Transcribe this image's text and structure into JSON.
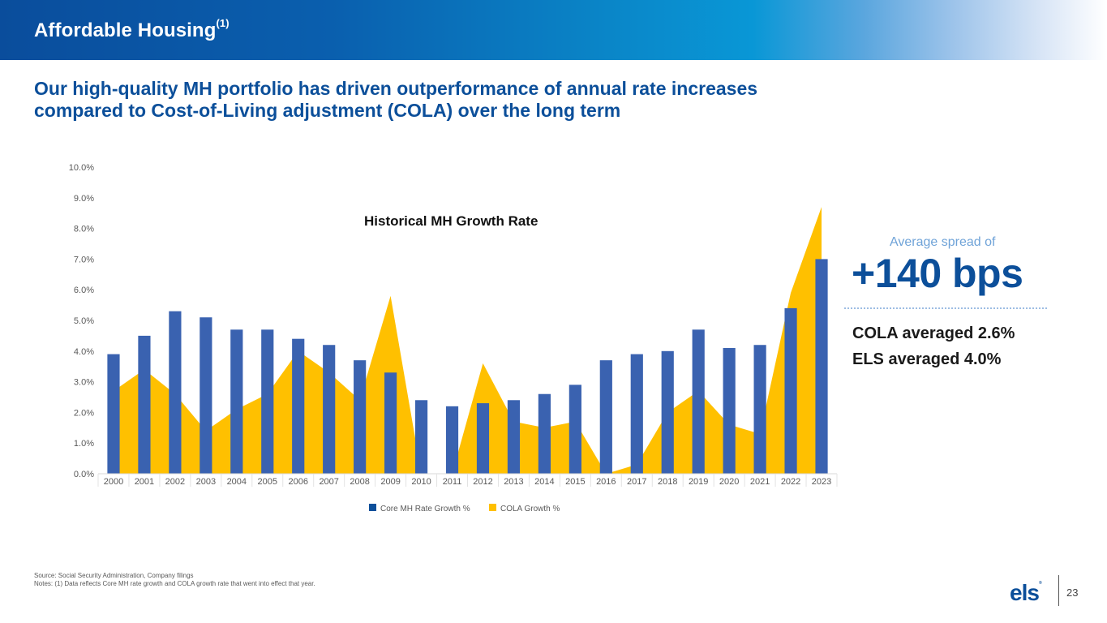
{
  "header": {
    "title": "Affordable Housing",
    "title_footnote_marker": "(1)"
  },
  "subtitle": "Our high-quality MH portfolio has driven outperformance of annual rate increases compared to Cost-of-Living adjustment (COLA) over the long term",
  "chart_data": {
    "type": "bar",
    "title": "Historical MH Growth Rate",
    "xlabel": "",
    "ylabel": "",
    "ylim": [
      0,
      10
    ],
    "y_ticks": [
      "0.0%",
      "1.0%",
      "2.0%",
      "3.0%",
      "4.0%",
      "5.0%",
      "6.0%",
      "7.0%",
      "8.0%",
      "9.0%",
      "10.0%"
    ],
    "y_tick_values": [
      0,
      1,
      2,
      3,
      4,
      5,
      6,
      7,
      8,
      9,
      10
    ],
    "grid": false,
    "legend_position": "bottom",
    "categories": [
      "2000",
      "2001",
      "2002",
      "2003",
      "2004",
      "2005",
      "2006",
      "2007",
      "2008",
      "2009",
      "2010",
      "2011",
      "2012",
      "2013",
      "2014",
      "2015",
      "2016",
      "2017",
      "2018",
      "2019",
      "2020",
      "2021",
      "2022",
      "2023"
    ],
    "series": [
      {
        "name": "Core MH Rate Growth %",
        "type": "bar",
        "color": "#3a62b0",
        "legend_color": "#0c4f9a",
        "values": [
          3.9,
          4.5,
          5.3,
          5.1,
          4.7,
          4.7,
          4.4,
          4.2,
          3.7,
          3.3,
          2.4,
          2.2,
          2.3,
          2.4,
          2.6,
          2.9,
          3.7,
          3.9,
          4.0,
          4.7,
          4.1,
          4.2,
          5.4,
          7.0
        ]
      },
      {
        "name": "COLA Growth %",
        "type": "area",
        "color": "#ffc000",
        "values": [
          2.7,
          3.4,
          2.6,
          1.4,
          2.1,
          2.6,
          4.0,
          3.3,
          2.4,
          5.8,
          0.0,
          0.0,
          3.6,
          1.7,
          1.5,
          1.7,
          0.0,
          0.3,
          2.0,
          2.7,
          1.6,
          1.3,
          5.9,
          8.7
        ]
      }
    ]
  },
  "spread_panel": {
    "label": "Average spread of",
    "value": "+140 bps",
    "cola_avg": "COLA averaged 2.6%",
    "els_avg": "ELS averaged 4.0%"
  },
  "footnotes": {
    "source": "Source: Social Security Administration, Company filings",
    "notes": "Notes: (1) Data reflects Core MH rate growth and COLA growth rate that went into effect that year."
  },
  "footer": {
    "logo_text": "els",
    "logo_mark": "®",
    "page_number": "23"
  },
  "colors": {
    "brand_blue": "#0c4f9a",
    "bar_blue": "#3a62b0",
    "cola_yellow": "#ffc000",
    "accent_light_blue": "#6fa3d8"
  }
}
